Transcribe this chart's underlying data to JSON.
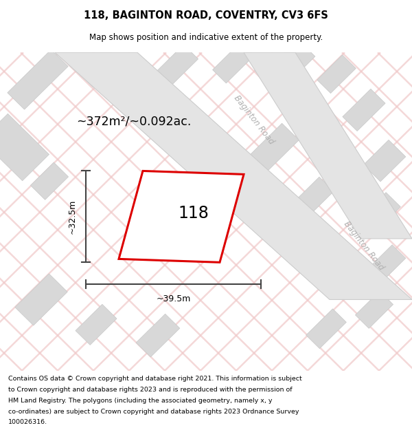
{
  "title": "118, BAGINTON ROAD, COVENTRY, CV3 6FS",
  "subtitle": "Map shows position and indicative extent of the property.",
  "footer": "Contains OS data © Crown copyright and database right 2021. This information is subject to Crown copyright and database rights 2023 and is reproduced with the permission of HM Land Registry. The polygons (including the associated geometry, namely x, y co-ordinates) are subject to Crown copyright and database rights 2023 Ordnance Survey 100026316.",
  "area_label": "~372m²/~0.092ac.",
  "width_label": "~39.5m",
  "height_label": "~32.5m",
  "plot_number": "118",
  "map_bg": "#f2eded",
  "road_line_color": "#f0c8c8",
  "block_color": "#d8d8d8",
  "block_edge_color": "#c8c8c8",
  "plot_fill_color": "#ffffff",
  "plot_outline_color": "#dd0000",
  "road_label_color": "#b0b0b0",
  "dim_line_color": "#444444",
  "road_fill_color": "#e4e4e4",
  "road_edge_color": "#cccccc"
}
